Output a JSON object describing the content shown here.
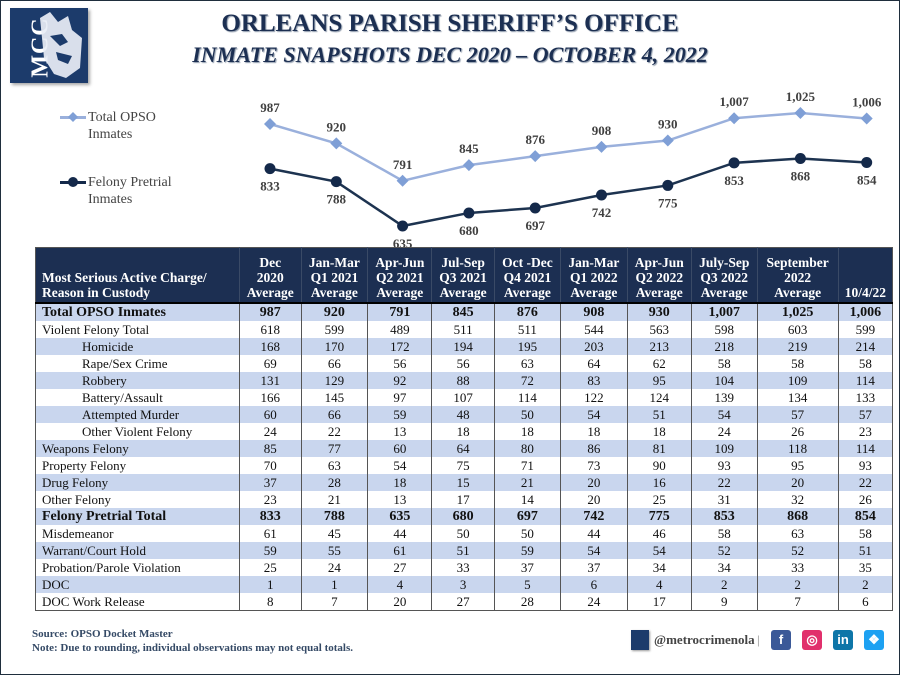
{
  "header": {
    "logo_text": "MCC",
    "title": "ORLEANS PARISH SHERIFF’S OFFICE",
    "subtitle": "INMATE SNAPSHOTS DEC 2020 – OCTOBER 4, 2022"
  },
  "chart_data": {
    "type": "line",
    "title": "",
    "categories": [
      "Dec 2020",
      "Q1 2021",
      "Q2 2021",
      "Q3 2021",
      "Q4 2021",
      "Q1 2022",
      "Q2 2022",
      "Q3 2022",
      "Sep 2022",
      "10/4/22"
    ],
    "series": [
      {
        "name": "Total OPSO Inmates",
        "color": "#7f9fd6",
        "marker": "diamond",
        "values": [
          987,
          920,
          791,
          845,
          876,
          908,
          930,
          1007,
          1025,
          1006
        ],
        "labels": [
          "987",
          "920",
          "791",
          "845",
          "876",
          "908",
          "930",
          "1,007",
          "1,025",
          "1,006"
        ]
      },
      {
        "name": "Felony Pretrial Inmates",
        "color": "#14294a",
        "marker": "circle",
        "values": [
          833,
          788,
          635,
          680,
          697,
          742,
          775,
          853,
          868,
          854
        ],
        "labels": [
          "833",
          "788",
          "635",
          "680",
          "697",
          "742",
          "775",
          "853",
          "868",
          "854"
        ]
      }
    ],
    "legend": "left",
    "grid": false,
    "ylim": [
      600,
      1050
    ]
  },
  "legend": {
    "total_label_1": "Total OPSO",
    "total_label_2": "Inmates",
    "felony_label_1": "Felony Pretrial",
    "felony_label_2": "Inmates"
  },
  "table": {
    "corner_line1": "Most Serious Active Charge/",
    "corner_line2": "Reason in Custody",
    "columns": [
      [
        "Dec",
        "2020",
        "Average"
      ],
      [
        "Jan-Mar",
        "Q1 2021",
        "Average"
      ],
      [
        "Apr-Jun",
        "Q2 2021",
        "Average"
      ],
      [
        "Jul-Sep",
        "Q3 2021",
        "Average"
      ],
      [
        "Oct -Dec",
        "Q4 2021",
        "Average"
      ],
      [
        "Jan-Mar",
        "Q1 2022",
        "Average"
      ],
      [
        "Apr-Jun",
        "Q2 2022",
        "Average"
      ],
      [
        "July-Sep",
        "Q3 2022",
        "Average"
      ],
      [
        "September",
        "2022",
        "Average"
      ],
      [
        "",
        "",
        "10/4/22"
      ]
    ],
    "rows": [
      {
        "label": "Total OPSO Inmates",
        "style": "bold shade",
        "values": [
          "987",
          "920",
          "791",
          "845",
          "876",
          "908",
          "930",
          "1,007",
          "1,025",
          "1,006"
        ]
      },
      {
        "label": "Violent Felony  Total",
        "style": "",
        "values": [
          "618",
          "599",
          "489",
          "511",
          "511",
          "544",
          "563",
          "598",
          "603",
          "599"
        ]
      },
      {
        "label": "Homicide",
        "style": "ind shade",
        "values": [
          "168",
          "170",
          "172",
          "194",
          "195",
          "203",
          "213",
          "218",
          "219",
          "214"
        ]
      },
      {
        "label": "Rape/Sex Crime",
        "style": "ind",
        "values": [
          "69",
          "66",
          "56",
          "56",
          "63",
          "64",
          "62",
          "58",
          "58",
          "58"
        ]
      },
      {
        "label": "Robbery",
        "style": "ind shade",
        "values": [
          "131",
          "129",
          "92",
          "88",
          "72",
          "83",
          "95",
          "104",
          "109",
          "114"
        ]
      },
      {
        "label": "Battery/Assault",
        "style": "ind",
        "values": [
          "166",
          "145",
          "97",
          "107",
          "114",
          "122",
          "124",
          "139",
          "134",
          "133"
        ]
      },
      {
        "label": "Attempted Murder",
        "style": "ind shade",
        "values": [
          "60",
          "66",
          "59",
          "48",
          "50",
          "54",
          "51",
          "54",
          "57",
          "57"
        ]
      },
      {
        "label": "Other Violent Felony",
        "style": "ind",
        "values": [
          "24",
          "22",
          "13",
          "18",
          "18",
          "18",
          "18",
          "24",
          "26",
          "23"
        ]
      },
      {
        "label": "Weapons Felony",
        "style": "shade",
        "values": [
          "85",
          "77",
          "60",
          "64",
          "80",
          "86",
          "81",
          "109",
          "118",
          "114"
        ]
      },
      {
        "label": "Property Felony",
        "style": "",
        "values": [
          "70",
          "63",
          "54",
          "75",
          "71",
          "73",
          "90",
          "93",
          "95",
          "93"
        ]
      },
      {
        "label": "Drug Felony",
        "style": "shade",
        "values": [
          "37",
          "28",
          "18",
          "15",
          "21",
          "20",
          "16",
          "22",
          "20",
          "22"
        ]
      },
      {
        "label": "Other Felony",
        "style": "",
        "values": [
          "23",
          "21",
          "13",
          "17",
          "14",
          "20",
          "25",
          "31",
          "32",
          "26"
        ]
      },
      {
        "label": "Felony Pretrial Total",
        "style": "bold shade",
        "values": [
          "833",
          "788",
          "635",
          "680",
          "697",
          "742",
          "775",
          "853",
          "868",
          "854"
        ]
      },
      {
        "label": "Misdemeanor",
        "style": "",
        "values": [
          "61",
          "45",
          "44",
          "50",
          "50",
          "44",
          "46",
          "58",
          "63",
          "58"
        ]
      },
      {
        "label": "Warrant/Court Hold",
        "style": "shade",
        "values": [
          "59",
          "55",
          "61",
          "51",
          "59",
          "54",
          "54",
          "52",
          "52",
          "51"
        ]
      },
      {
        "label": "Probation/Parole Violation",
        "style": "",
        "values": [
          "25",
          "24",
          "27",
          "33",
          "37",
          "37",
          "34",
          "34",
          "33",
          "35"
        ]
      },
      {
        "label": "DOC",
        "style": "shade",
        "values": [
          "1",
          "1",
          "4",
          "3",
          "5",
          "6",
          "4",
          "2",
          "2",
          "2"
        ]
      },
      {
        "label": "DOC Work Release",
        "style": "",
        "values": [
          "8",
          "7",
          "20",
          "27",
          "28",
          "24",
          "17",
          "9",
          "7",
          "6"
        ]
      }
    ]
  },
  "footer": {
    "source": "Source: OPSO Docket Master",
    "note": "Note: Due to rounding, individual observations may not equal totals.",
    "handle": "@metrocrimenola",
    "separator": "|",
    "social": [
      {
        "name": "facebook",
        "glyph": "f",
        "color": "#3b5998"
      },
      {
        "name": "instagram",
        "glyph": "◎",
        "color": "#e1306c"
      },
      {
        "name": "linkedin",
        "glyph": "in",
        "color": "#0e76a8"
      },
      {
        "name": "twitter",
        "glyph": "❖",
        "color": "#1da1f2"
      }
    ]
  }
}
